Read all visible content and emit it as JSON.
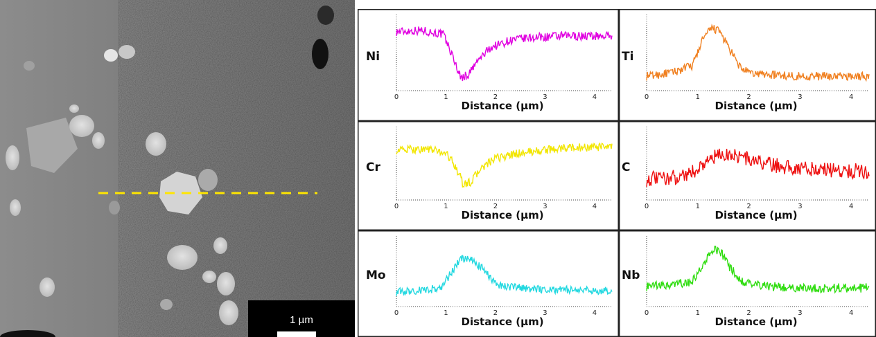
{
  "micrograph": {
    "scale_bar_label": "1 µm",
    "linescan_color": "#ffe600"
  },
  "chart_data": [
    {
      "type": "line",
      "element": "Ni",
      "color": "#e000e0",
      "xlabel": "Distance (µm)",
      "xlim": [
        0,
        4.35
      ],
      "xticks": [
        0,
        1,
        2,
        3,
        4
      ],
      "profile": {
        "x": [
          0,
          0.5,
          0.95,
          1.15,
          1.3,
          1.45,
          1.65,
          1.9,
          2.3,
          2.8,
          3.4,
          4.0,
          4.35
        ],
        "y": [
          0.82,
          0.84,
          0.78,
          0.45,
          0.18,
          0.22,
          0.42,
          0.6,
          0.7,
          0.74,
          0.76,
          0.76,
          0.76
        ]
      },
      "noise": 0.06
    },
    {
      "type": "line",
      "element": "Ti",
      "color": "#f08020",
      "xlabel": "Distance (µm)",
      "xlim": [
        0,
        4.35
      ],
      "xticks": [
        0,
        1,
        2,
        3,
        4
      ],
      "profile": {
        "x": [
          0,
          0.5,
          0.9,
          1.1,
          1.3,
          1.45,
          1.6,
          1.8,
          2.0,
          2.5,
          3.0,
          4.0,
          4.35
        ],
        "y": [
          0.2,
          0.25,
          0.35,
          0.72,
          0.88,
          0.8,
          0.6,
          0.35,
          0.24,
          0.22,
          0.2,
          0.2,
          0.2
        ]
      },
      "noise": 0.06
    },
    {
      "type": "line",
      "element": "Cr",
      "color": "#f2e600",
      "xlabel": "Distance (µm)",
      "xlim": [
        0,
        4.35
      ],
      "xticks": [
        0,
        1,
        2,
        3,
        4
      ],
      "profile": {
        "x": [
          0,
          0.6,
          1.0,
          1.2,
          1.35,
          1.5,
          1.7,
          2.0,
          2.5,
          3.0,
          3.5,
          4.0,
          4.35
        ],
        "y": [
          0.72,
          0.74,
          0.68,
          0.48,
          0.22,
          0.26,
          0.45,
          0.6,
          0.68,
          0.72,
          0.76,
          0.76,
          0.76
        ]
      },
      "noise": 0.06
    },
    {
      "type": "line",
      "element": "C",
      "color": "#ee1010",
      "xlabel": "Distance (µm)",
      "xlim": [
        0,
        4.35
      ],
      "xticks": [
        0,
        1,
        2,
        3,
        4
      ],
      "profile": {
        "x": [
          0,
          0.5,
          0.9,
          1.2,
          1.5,
          1.8,
          2.1,
          2.5,
          3.0,
          3.5,
          4.0,
          4.35
        ],
        "y": [
          0.3,
          0.32,
          0.4,
          0.58,
          0.66,
          0.64,
          0.56,
          0.5,
          0.46,
          0.44,
          0.42,
          0.42
        ]
      },
      "noise": 0.11
    },
    {
      "type": "line",
      "element": "Mo",
      "color": "#22d8e0",
      "xlabel": "Distance (µm)",
      "xlim": [
        0,
        4.35
      ],
      "xticks": [
        0,
        1,
        2,
        3,
        4
      ],
      "profile": {
        "x": [
          0,
          0.5,
          0.9,
          1.1,
          1.3,
          1.5,
          1.7,
          1.9,
          2.1,
          2.5,
          3.0,
          4.0,
          4.35
        ],
        "y": [
          0.22,
          0.24,
          0.28,
          0.5,
          0.72,
          0.7,
          0.6,
          0.42,
          0.32,
          0.28,
          0.26,
          0.24,
          0.24
        ]
      },
      "noise": 0.06
    },
    {
      "type": "line",
      "element": "Nb",
      "color": "#30dd10",
      "xlabel": "Distance (µm)",
      "xlim": [
        0,
        4.35
      ],
      "xticks": [
        0,
        1,
        2,
        3,
        4
      ],
      "profile": {
        "x": [
          0,
          0.5,
          0.9,
          1.1,
          1.3,
          1.45,
          1.6,
          1.8,
          2.0,
          2.5,
          3.0,
          4.0,
          4.35
        ],
        "y": [
          0.3,
          0.32,
          0.38,
          0.62,
          0.85,
          0.82,
          0.62,
          0.42,
          0.34,
          0.3,
          0.28,
          0.28,
          0.28
        ]
      },
      "noise": 0.07
    }
  ]
}
